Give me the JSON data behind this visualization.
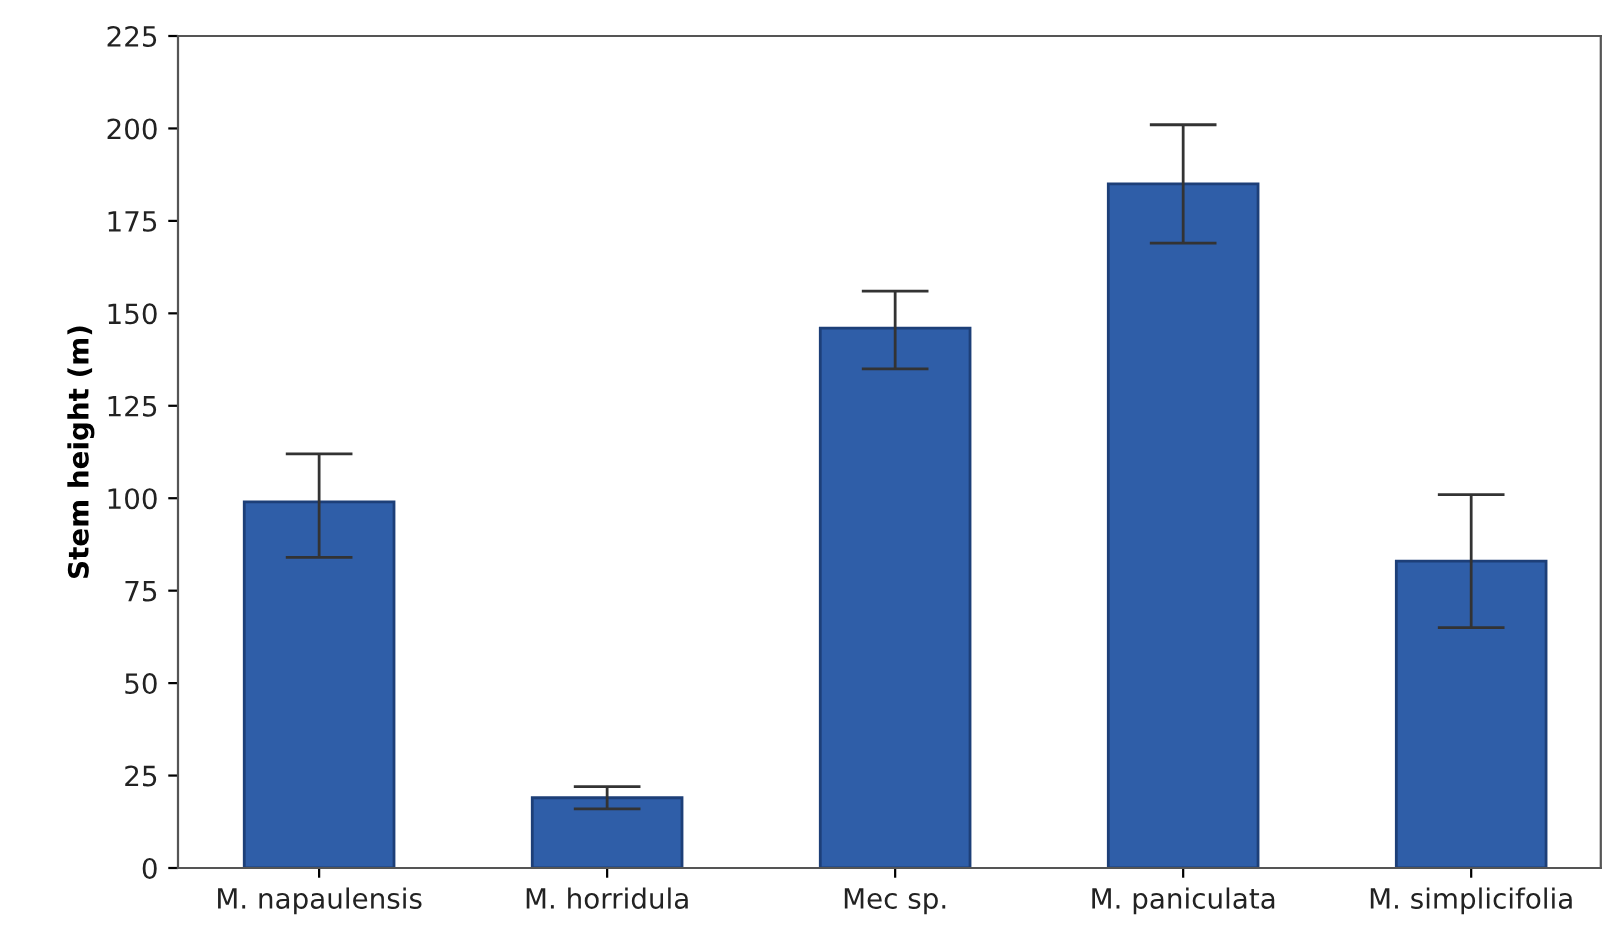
{
  "chart_data": {
    "type": "bar",
    "ylabel": "Stem height (m)",
    "categories": [
      "M. napaulensis",
      "M. horridula",
      "Mec sp.",
      "M. paniculata",
      "M. simplicifolia"
    ],
    "values": [
      99,
      19,
      146,
      185,
      83
    ],
    "errors": [
      [
        84,
        112
      ],
      [
        16,
        22
      ],
      [
        135,
        156
      ],
      [
        169,
        201
      ],
      [
        65,
        101
      ]
    ],
    "color": "#2f5ea8",
    "ylim": [
      0,
      225
    ],
    "yticks": [
      0,
      25,
      50,
      75,
      100,
      125,
      150,
      175,
      200,
      225
    ],
    "grid": false
  }
}
